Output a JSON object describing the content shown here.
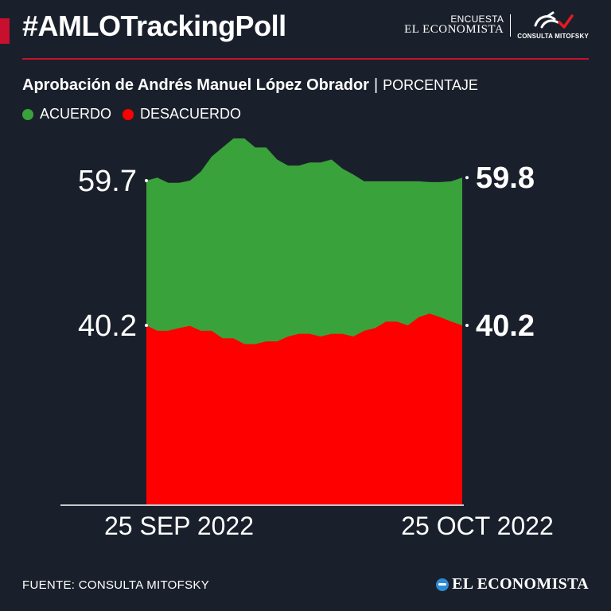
{
  "header": {
    "hashtag": "#AMLOTrackingPoll",
    "brand_line1": "ENCUESTA",
    "brand_line2": "EL ECONOMISTA",
    "partner": "CONSULTA MITOFSKY"
  },
  "subtitle": {
    "title": "Aprobación de Andrés Manuel López Obrador",
    "separator": "|",
    "unit": "PORCENTAJE"
  },
  "legend": {
    "agree": "ACUERDO",
    "disagree": "DESACUERDO"
  },
  "colors": {
    "background": "#1a202b",
    "agree": "#3aa23a",
    "disagree": "#ff0000",
    "accent": "#c8102e"
  },
  "chart_data": {
    "type": "area",
    "x_start_label": "25 SEP 2022",
    "x_end_label": "25 OCT 2022",
    "start_value_label": {
      "agree": "59.7",
      "disagree": "40.2"
    },
    "end_value_label": {
      "agree": "59.8",
      "disagree": "40.2"
    },
    "ylim": [
      0,
      100
    ],
    "series": [
      {
        "name": "ACUERDO",
        "values": [
          59.7,
          59.8,
          59.4,
          59.4,
          59.7,
          60.0,
          60.5,
          60.8,
          61.1,
          61.1,
          60.8,
          60.8,
          60.4,
          60.2,
          60.2,
          60.3,
          60.3,
          60.4,
          60.1,
          59.9,
          59.6,
          59.6,
          59.6,
          59.6,
          59.6,
          59.6,
          59.5,
          59.5,
          59.6,
          59.8
        ]
      },
      {
        "name": "DESACUERDO",
        "values": [
          40.2,
          39.0,
          39.0,
          39.6,
          40.1,
          39.0,
          39.0,
          37.3,
          37.3,
          36.0,
          36.0,
          36.6,
          36.6,
          37.7,
          38.3,
          38.3,
          37.7,
          38.3,
          38.3,
          37.7,
          39.0,
          39.6,
          40.7,
          40.7,
          40.2,
          41.3,
          41.8,
          41.3,
          40.7,
          40.2
        ]
      }
    ],
    "source": "FUENTE: CONSULTA MITOFSKY"
  },
  "footer": {
    "source": "FUENTE: CONSULTA MITOFSKY",
    "logo": "EL ECONOMISTA"
  }
}
